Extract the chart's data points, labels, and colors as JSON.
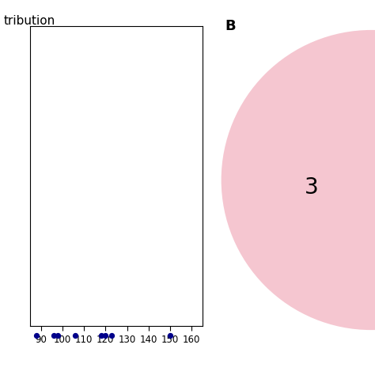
{
  "title_left": "tribution",
  "panel_B_label": "B",
  "scatter_x": [
    88,
    96,
    98,
    106,
    118,
    120,
    123,
    150
  ],
  "scatter_color": "#00008B",
  "scatter_size": 18,
  "xlim": [
    85,
    165
  ],
  "xticks": [
    90,
    100,
    110,
    120,
    130,
    140,
    150,
    160
  ],
  "venn_circle_color": "#F5C6D0",
  "venn_number": "3",
  "background_color": "#ffffff"
}
